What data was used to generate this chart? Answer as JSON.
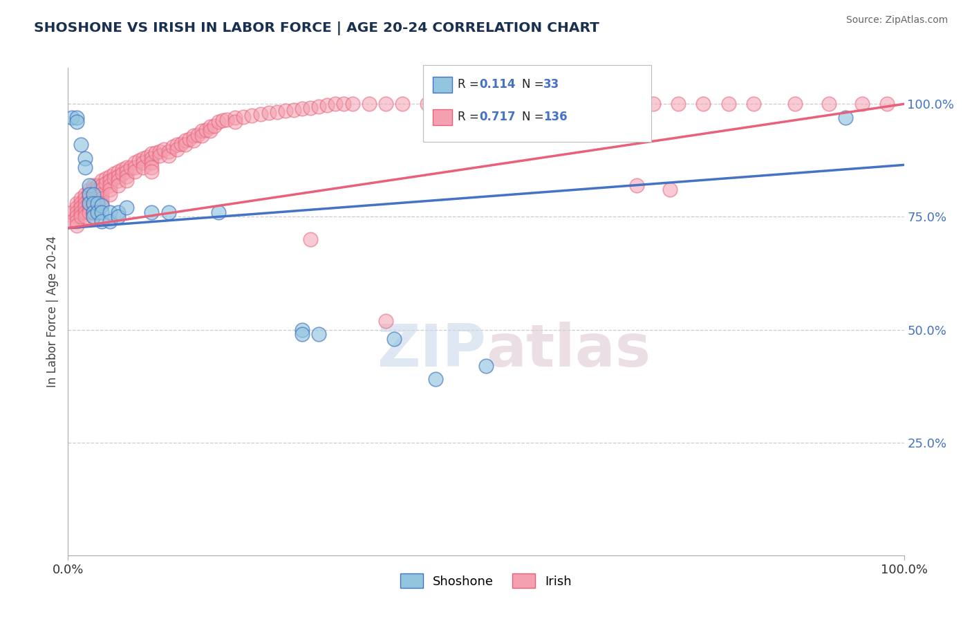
{
  "title": "SHOSHONE VS IRISH IN LABOR FORCE | AGE 20-24 CORRELATION CHART",
  "source_text": "Source: ZipAtlas.com",
  "ylabel": "In Labor Force | Age 20-24",
  "y_tick_right_labels": [
    "100.0%",
    "75.0%",
    "50.0%",
    "25.0%"
  ],
  "y_tick_right_values": [
    1.0,
    0.75,
    0.5,
    0.25
  ],
  "legend_r_shoshone": "0.114",
  "legend_n_shoshone": "33",
  "legend_r_irish": "0.717",
  "legend_n_irish": "136",
  "shoshone_color": "#92C5DE",
  "irish_color": "#F4A0B0",
  "shoshone_line_color": "#4472C4",
  "irish_line_color": "#E8607A",
  "title_color": "#1A3050",
  "source_color": "#666666",
  "r_n_color": "#4472C4",
  "grid_color": "#CCCCCC",
  "bg_color": "#FFFFFF",
  "watermark_zip_color": "#C8D8EA",
  "watermark_atlas_color": "#E0C8D4",
  "shoshone_x": [
    0.005,
    0.01,
    0.01,
    0.015,
    0.02,
    0.02,
    0.025,
    0.025,
    0.025,
    0.03,
    0.03,
    0.03,
    0.03,
    0.035,
    0.035,
    0.04,
    0.04,
    0.04,
    0.05,
    0.05,
    0.06,
    0.06,
    0.07,
    0.1,
    0.12,
    0.18,
    0.28,
    0.28,
    0.3,
    0.39,
    0.5,
    0.93,
    0.44
  ],
  "shoshone_y": [
    0.97,
    0.97,
    0.96,
    0.91,
    0.88,
    0.86,
    0.82,
    0.8,
    0.78,
    0.8,
    0.78,
    0.76,
    0.75,
    0.78,
    0.76,
    0.775,
    0.76,
    0.74,
    0.76,
    0.74,
    0.76,
    0.75,
    0.77,
    0.76,
    0.76,
    0.76,
    0.5,
    0.49,
    0.49,
    0.48,
    0.42,
    0.97,
    0.39
  ],
  "irish_x": [
    0.005,
    0.005,
    0.01,
    0.01,
    0.01,
    0.01,
    0.01,
    0.01,
    0.015,
    0.015,
    0.015,
    0.015,
    0.015,
    0.02,
    0.02,
    0.02,
    0.02,
    0.02,
    0.02,
    0.025,
    0.025,
    0.025,
    0.025,
    0.025,
    0.025,
    0.03,
    0.03,
    0.03,
    0.03,
    0.03,
    0.03,
    0.03,
    0.03,
    0.03,
    0.035,
    0.035,
    0.035,
    0.035,
    0.04,
    0.04,
    0.04,
    0.04,
    0.04,
    0.04,
    0.045,
    0.045,
    0.05,
    0.05,
    0.05,
    0.05,
    0.05,
    0.055,
    0.055,
    0.06,
    0.06,
    0.06,
    0.06,
    0.065,
    0.065,
    0.07,
    0.07,
    0.07,
    0.07,
    0.075,
    0.08,
    0.08,
    0.08,
    0.085,
    0.09,
    0.09,
    0.09,
    0.095,
    0.1,
    0.1,
    0.1,
    0.1,
    0.1,
    0.105,
    0.11,
    0.11,
    0.115,
    0.12,
    0.12,
    0.125,
    0.13,
    0.13,
    0.135,
    0.14,
    0.14,
    0.145,
    0.15,
    0.15,
    0.155,
    0.16,
    0.16,
    0.165,
    0.17,
    0.17,
    0.175,
    0.18,
    0.185,
    0.19,
    0.2,
    0.2,
    0.21,
    0.22,
    0.23,
    0.24,
    0.25,
    0.26,
    0.27,
    0.28,
    0.29,
    0.3,
    0.31,
    0.32,
    0.33,
    0.34,
    0.36,
    0.38,
    0.4,
    0.43,
    0.46,
    0.5,
    0.54,
    0.57,
    0.6,
    0.64,
    0.67,
    0.7,
    0.73,
    0.76,
    0.79,
    0.82,
    0.87,
    0.91,
    0.95,
    0.98,
    0.68,
    0.72,
    0.38,
    0.29
  ],
  "irish_y": [
    0.76,
    0.74,
    0.78,
    0.77,
    0.76,
    0.75,
    0.74,
    0.73,
    0.79,
    0.78,
    0.77,
    0.76,
    0.75,
    0.8,
    0.79,
    0.78,
    0.77,
    0.76,
    0.75,
    0.81,
    0.8,
    0.79,
    0.78,
    0.77,
    0.76,
    0.82,
    0.81,
    0.8,
    0.795,
    0.785,
    0.775,
    0.77,
    0.76,
    0.75,
    0.82,
    0.81,
    0.8,
    0.79,
    0.83,
    0.82,
    0.81,
    0.8,
    0.79,
    0.78,
    0.835,
    0.825,
    0.84,
    0.83,
    0.82,
    0.81,
    0.8,
    0.845,
    0.835,
    0.85,
    0.84,
    0.83,
    0.82,
    0.855,
    0.845,
    0.86,
    0.85,
    0.84,
    0.83,
    0.86,
    0.87,
    0.86,
    0.85,
    0.875,
    0.88,
    0.87,
    0.86,
    0.882,
    0.89,
    0.88,
    0.87,
    0.86,
    0.85,
    0.892,
    0.895,
    0.885,
    0.9,
    0.895,
    0.885,
    0.905,
    0.91,
    0.9,
    0.912,
    0.92,
    0.91,
    0.922,
    0.93,
    0.92,
    0.932,
    0.94,
    0.93,
    0.942,
    0.95,
    0.94,
    0.952,
    0.96,
    0.963,
    0.965,
    0.97,
    0.96,
    0.972,
    0.975,
    0.977,
    0.98,
    0.982,
    0.985,
    0.987,
    0.99,
    0.992,
    0.995,
    0.997,
    1.0,
    1.0,
    1.0,
    1.0,
    1.0,
    1.0,
    1.0,
    1.0,
    1.0,
    1.0,
    1.0,
    1.0,
    1.0,
    1.0,
    1.0,
    1.0,
    1.0,
    1.0,
    1.0,
    1.0,
    1.0,
    1.0,
    1.0,
    0.82,
    0.81,
    0.52,
    0.7
  ]
}
